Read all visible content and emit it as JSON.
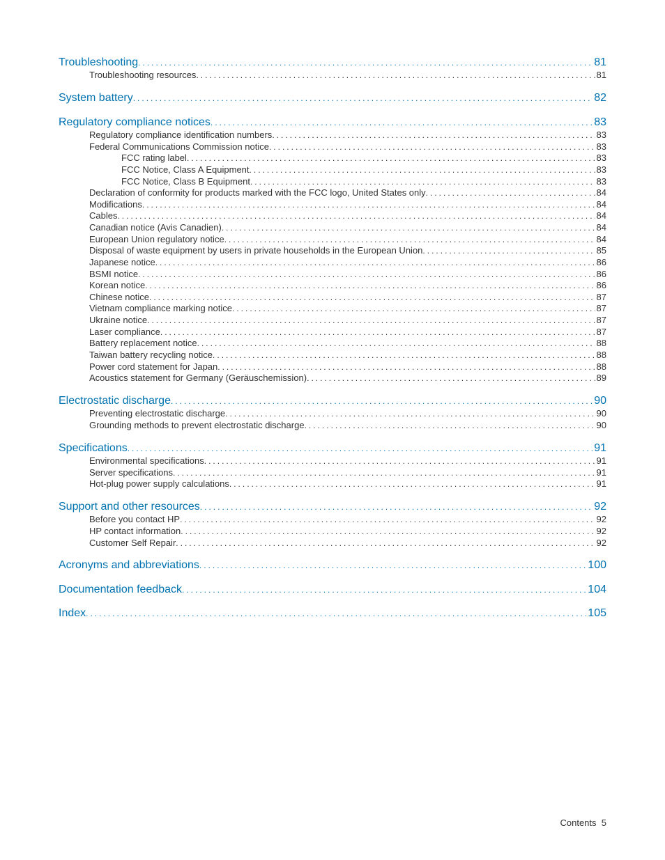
{
  "colors": {
    "link": "#0073b0",
    "text": "#333333",
    "background": "#ffffff"
  },
  "typography": {
    "section_fontsize": 16,
    "item_fontsize": 13,
    "font_family": "Arial"
  },
  "toc": [
    {
      "level": 0,
      "label": "Troubleshooting",
      "page": "81"
    },
    {
      "level": 1,
      "label": "Troubleshooting resources",
      "page": "81"
    },
    {
      "level": 0,
      "label": "System battery",
      "page": "82"
    },
    {
      "level": 0,
      "label": "Regulatory compliance notices",
      "page": "83"
    },
    {
      "level": 1,
      "label": "Regulatory compliance identification numbers",
      "page": "83"
    },
    {
      "level": 1,
      "label": "Federal Communications Commission notice",
      "page": "83"
    },
    {
      "level": 2,
      "label": "FCC rating label",
      "page": "83"
    },
    {
      "level": 2,
      "label": "FCC Notice, Class A Equipment",
      "page": "83"
    },
    {
      "level": 2,
      "label": "FCC Notice, Class B Equipment",
      "page": "83"
    },
    {
      "level": 1,
      "label": "Declaration of conformity for products marked with the FCC logo, United States only",
      "page": "84"
    },
    {
      "level": 1,
      "label": "Modifications",
      "page": "84"
    },
    {
      "level": 1,
      "label": "Cables",
      "page": "84"
    },
    {
      "level": 1,
      "label": "Canadian notice (Avis Canadien)",
      "page": "84"
    },
    {
      "level": 1,
      "label": "European Union regulatory notice",
      "page": "84"
    },
    {
      "level": 1,
      "label": "Disposal of waste equipment by users in private households in the European Union",
      "page": "85"
    },
    {
      "level": 1,
      "label": "Japanese notice",
      "page": "86"
    },
    {
      "level": 1,
      "label": "BSMI notice",
      "page": "86"
    },
    {
      "level": 1,
      "label": "Korean notice",
      "page": "86"
    },
    {
      "level": 1,
      "label": "Chinese notice",
      "page": "87"
    },
    {
      "level": 1,
      "label": "Vietnam compliance marking notice",
      "page": "87"
    },
    {
      "level": 1,
      "label": "Ukraine notice",
      "page": "87"
    },
    {
      "level": 1,
      "label": "Laser compliance",
      "page": "87"
    },
    {
      "level": 1,
      "label": "Battery replacement notice",
      "page": "88"
    },
    {
      "level": 1,
      "label": "Taiwan battery recycling notice",
      "page": "88"
    },
    {
      "level": 1,
      "label": "Power cord statement for Japan",
      "page": "88"
    },
    {
      "level": 1,
      "label": "Acoustics statement for Germany (Geräuschemission)",
      "page": "89"
    },
    {
      "level": 0,
      "label": "Electrostatic discharge",
      "page": "90"
    },
    {
      "level": 1,
      "label": "Preventing electrostatic discharge",
      "page": "90"
    },
    {
      "level": 1,
      "label": "Grounding methods to prevent electrostatic discharge",
      "page": "90"
    },
    {
      "level": 0,
      "label": "Specifications",
      "page": "91"
    },
    {
      "level": 1,
      "label": "Environmental specifications",
      "page": "91"
    },
    {
      "level": 1,
      "label": "Server specifications",
      "page": "91"
    },
    {
      "level": 1,
      "label": "Hot-plug power supply calculations",
      "page": "91"
    },
    {
      "level": 0,
      "label": "Support and other resources",
      "page": "92"
    },
    {
      "level": 1,
      "label": "Before you contact HP",
      "page": "92"
    },
    {
      "level": 1,
      "label": "HP contact information",
      "page": "92"
    },
    {
      "level": 1,
      "label": "Customer Self Repair",
      "page": "92"
    },
    {
      "level": 0,
      "label": "Acronyms and abbreviations",
      "page": "100"
    },
    {
      "level": 0,
      "label": "Documentation feedback",
      "page": "104"
    },
    {
      "level": 0,
      "label": "Index",
      "page": "105"
    }
  ],
  "footer": {
    "label": "Contents",
    "page": "5"
  }
}
